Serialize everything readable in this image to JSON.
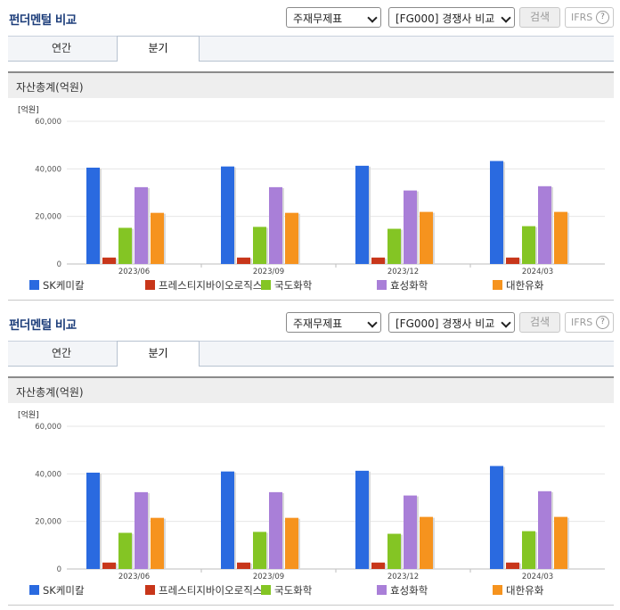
{
  "widget": {
    "title": "펀더멘털 비교",
    "statement_select": "주재무제표",
    "compare_select": "[FG000] 경쟁사 비교",
    "search_button": "검색",
    "ifrs_label": "IFRS",
    "help_glyph": "?",
    "tabs": [
      "연간",
      "분기"
    ],
    "active_tab": "분기",
    "section_label": "자산총계(억원)"
  },
  "colors": {
    "title": "#1c3d7a",
    "series": [
      "#2a6ae0",
      "#c8361a",
      "#84c524",
      "#a97fd8",
      "#f6931e"
    ]
  },
  "chart_data": {
    "type": "bar",
    "unit_label": "[억원]",
    "categories": [
      "2023/06",
      "2023/09",
      "2023/12",
      "2024/03"
    ],
    "ylim": [
      0,
      60000
    ],
    "y_ticks": [
      0,
      20000,
      40000,
      60000
    ],
    "y_tick_labels": [
      "0",
      "20,000",
      "40,000",
      "60,000"
    ],
    "grid": true,
    "legend_position": "bottom",
    "series": [
      {
        "name": "SK케미칼",
        "values": [
          40500,
          41000,
          41300,
          43300
        ]
      },
      {
        "name": "프레스티지바이오로직스",
        "values": [
          2700,
          2700,
          2700,
          2700
        ]
      },
      {
        "name": "국도화학",
        "values": [
          15200,
          15600,
          14800,
          15900
        ]
      },
      {
        "name": "효성화학",
        "values": [
          32300,
          32300,
          30900,
          32700
        ]
      },
      {
        "name": "대한유화",
        "values": [
          21500,
          21500,
          21900,
          21900
        ]
      }
    ]
  }
}
